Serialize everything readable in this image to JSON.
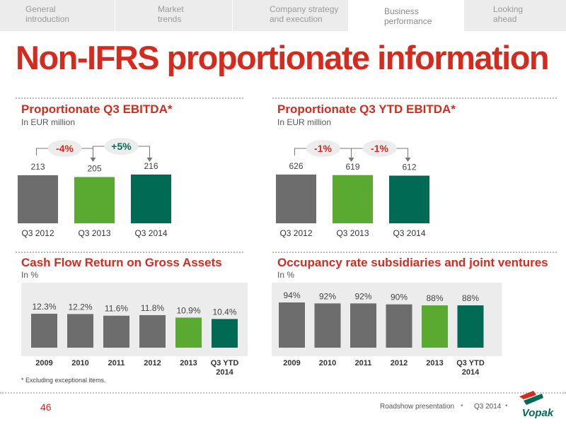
{
  "nav": {
    "tabs": [
      {
        "label": "General\nintroduction",
        "active": false
      },
      {
        "label": "Market\ntrends",
        "active": false
      },
      {
        "label": "Company strategy\nand execution",
        "active": false
      },
      {
        "label": "Business\nperformance",
        "active": true
      },
      {
        "label": "Looking\nahead",
        "active": false
      }
    ]
  },
  "page": {
    "title": "Non-IFRS proportionate information",
    "footnote": "* Excluding exceptional items.",
    "page_number": "46",
    "footer_label": "Roadshow presentation",
    "footer_period": "Q3 2014",
    "logo_text": "Vopak"
  },
  "colors": {
    "brand_red": "#d52b1e",
    "grey_bar": "#6d6d6d",
    "light_green": "#5aaa32",
    "dark_green": "#006a54",
    "panel_bg": "#ececec"
  },
  "chart_data": [
    {
      "type": "bar",
      "title": "Proportionate Q3 EBITDA*",
      "subtitle": "In EUR million",
      "categories": [
        "Q3 2012",
        "Q3 2013",
        "Q3 2014"
      ],
      "values": [
        213,
        205,
        216
      ],
      "value_labels": [
        "213",
        "205",
        "216"
      ],
      "bar_colors": [
        "#6d6d6d",
        "#5aaa32",
        "#006a54"
      ],
      "changes": [
        {
          "from": 0,
          "to": 1,
          "label": "-4%",
          "color": "#d52b1e"
        },
        {
          "from": 1,
          "to": 2,
          "label": "+5%",
          "color": "#006a54"
        }
      ]
    },
    {
      "type": "bar",
      "title": "Proportionate Q3 YTD EBITDA*",
      "subtitle": "In EUR million",
      "categories": [
        "Q3 2012",
        "Q3 2013",
        "Q3 2014"
      ],
      "values": [
        626,
        619,
        612
      ],
      "value_labels": [
        "626",
        "619",
        "612"
      ],
      "bar_colors": [
        "#6d6d6d",
        "#5aaa32",
        "#006a54"
      ],
      "changes": [
        {
          "from": 0,
          "to": 1,
          "label": "-1%",
          "color": "#d52b1e"
        },
        {
          "from": 1,
          "to": 2,
          "label": "-1%",
          "color": "#d52b1e"
        }
      ]
    },
    {
      "type": "bar",
      "title": "Cash Flow Return on Gross Assets",
      "subtitle": "In %",
      "categories": [
        "2009",
        "2010",
        "2011",
        "2012",
        "2013",
        "Q3 YTD\n2014"
      ],
      "values": [
        12.3,
        12.2,
        11.6,
        11.8,
        10.9,
        10.4
      ],
      "value_labels": [
        "12.3%",
        "12.2%",
        "11.6%",
        "11.8%",
        "10.9%",
        "10.4%"
      ],
      "bar_colors": [
        "#6d6d6d",
        "#6d6d6d",
        "#6d6d6d",
        "#6d6d6d",
        "#5aaa32",
        "#006a54"
      ]
    },
    {
      "type": "bar",
      "title": "Occupancy rate subsidiaries and joint ventures",
      "subtitle": "In %",
      "categories": [
        "2009",
        "2010",
        "2011",
        "2012",
        "2013",
        "Q3 YTD\n2014"
      ],
      "values": [
        94,
        92,
        92,
        90,
        88,
        88
      ],
      "value_labels": [
        "94%",
        "92%",
        "92%",
        "90%",
        "88%",
        "88%"
      ],
      "bar_colors": [
        "#6d6d6d",
        "#6d6d6d",
        "#6d6d6d",
        "#6d6d6d",
        "#5aaa32",
        "#006a54"
      ]
    }
  ]
}
